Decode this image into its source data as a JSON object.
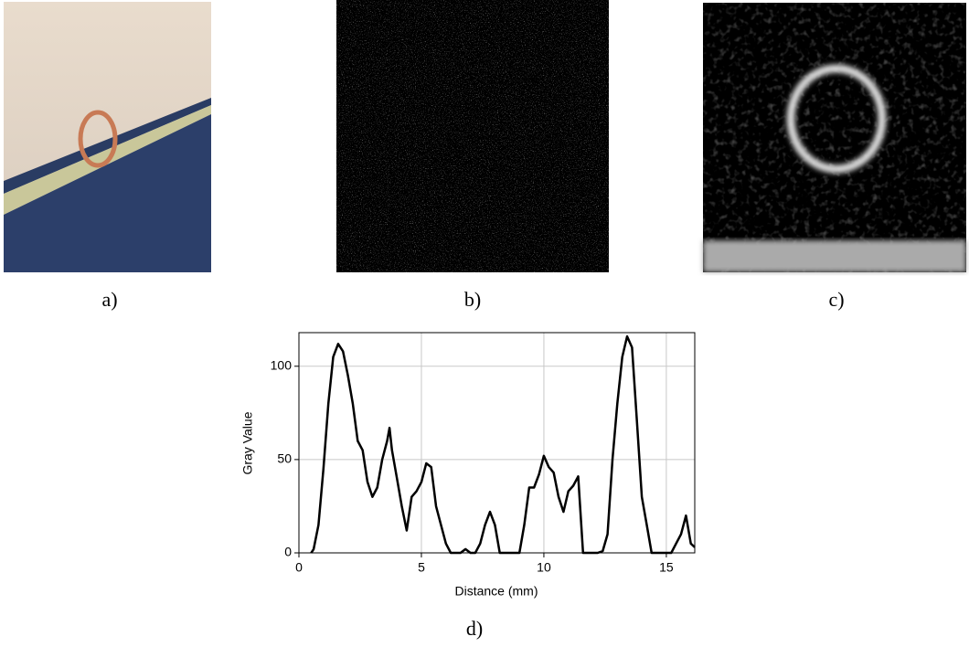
{
  "panels": [
    "a)",
    "b)",
    "c)",
    "d)"
  ],
  "chart_data": {
    "type": "line",
    "x_label": "Distance (mm)",
    "y_label": "Gray Value",
    "x": [
      0.5,
      0.6,
      0.8,
      1.0,
      1.2,
      1.4,
      1.6,
      1.8,
      2.0,
      2.2,
      2.4,
      2.6,
      2.8,
      3.0,
      3.2,
      3.4,
      3.6,
      3.7,
      3.8,
      4.0,
      4.2,
      4.4,
      4.6,
      4.8,
      5.0,
      5.2,
      5.4,
      5.6,
      5.8,
      6.0,
      6.2,
      6.6,
      6.8,
      7.0,
      7.2,
      7.4,
      7.6,
      7.8,
      8.0,
      8.2,
      9.0,
      9.2,
      9.4,
      9.6,
      9.8,
      10.0,
      10.2,
      10.4,
      10.6,
      10.8,
      11.0,
      11.2,
      11.4,
      11.6,
      12.0,
      12.2,
      12.4,
      12.6,
      12.8,
      13.0,
      13.2,
      13.4,
      13.6,
      13.8,
      14.0,
      14.2,
      14.4,
      15.0,
      15.2,
      15.4,
      15.6,
      15.8,
      16.0,
      16.16
    ],
    "y": [
      0,
      2,
      15,
      45,
      80,
      105,
      112,
      108,
      95,
      80,
      60,
      55,
      38,
      30,
      35,
      50,
      60,
      67,
      55,
      40,
      25,
      12,
      30,
      33,
      38,
      48,
      46,
      25,
      15,
      5,
      0,
      0,
      2,
      0,
      0,
      5,
      15,
      22,
      15,
      0,
      0,
      15,
      35,
      35,
      42,
      52,
      46,
      43,
      30,
      22,
      33,
      36,
      41,
      0,
      0,
      0,
      1,
      10,
      50,
      80,
      105,
      116,
      110,
      70,
      30,
      15,
      0,
      0,
      0,
      5,
      10,
      20,
      5,
      3
    ],
    "color": "#000000",
    "xlim": [
      0,
      16.16
    ],
    "ylim": [
      0,
      118
    ],
    "xticks": [
      0,
      5,
      10,
      15
    ],
    "yticks": [
      0,
      50,
      100
    ],
    "grid": true
  }
}
